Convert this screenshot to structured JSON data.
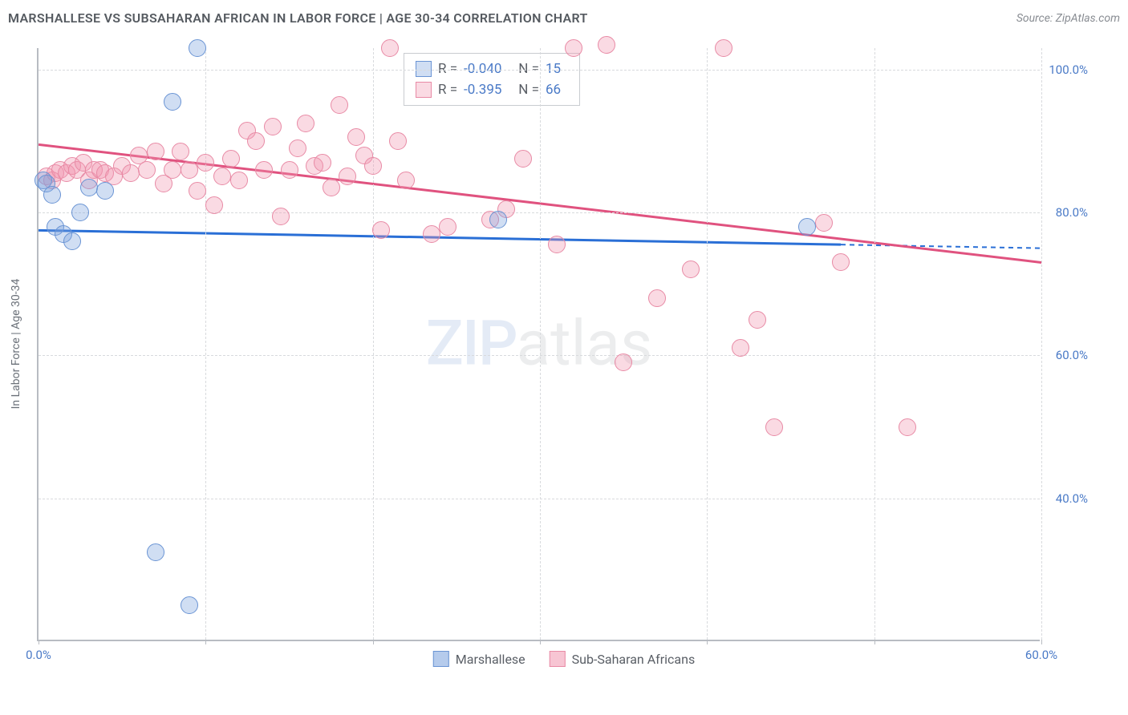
{
  "header": {
    "title": "MARSHALLESE VS SUBSAHARAN AFRICAN IN LABOR FORCE | AGE 30-34 CORRELATION CHART",
    "source": "Source: ZipAtlas.com"
  },
  "chart": {
    "type": "scatter",
    "y_label": "In Labor Force | Age 30-34",
    "xlim": [
      0,
      60
    ],
    "ylim": [
      20,
      103
    ],
    "x_ticks": [
      0,
      10,
      20,
      30,
      40,
      50,
      60
    ],
    "x_tick_labels": {
      "0": "0.0%",
      "60": "60.0%"
    },
    "y_ticks": [
      40,
      60,
      80,
      100
    ],
    "y_tick_labels": {
      "40": "40.0%",
      "60": "60.0%",
      "80": "80.0%",
      "100": "100.0%"
    },
    "grid_color": "#d8dadd",
    "axis_color": "#b8bcc2",
    "background_color": "#ffffff",
    "tick_label_color": "#4a7ac7",
    "axis_label_color": "#6a7078",
    "series": [
      {
        "name": "Marshallese",
        "color_fill": "rgba(120,160,220,0.35)",
        "color_stroke": "#6a94d4",
        "trend_color": "#2a6fd6",
        "marker_radius": 11,
        "r": "-0.040",
        "n": "15",
        "trend": {
          "x1_pct": 0,
          "y1": 77.5,
          "x2_pct": 80,
          "y2": 75.5,
          "dash_x2_pct": 100,
          "dash_y2": 75.0
        },
        "points": [
          [
            0.3,
            84.5
          ],
          [
            0.5,
            84.0
          ],
          [
            0.8,
            82.5
          ],
          [
            1.0,
            78.0
          ],
          [
            1.5,
            77.0
          ],
          [
            2.0,
            76.0
          ],
          [
            2.5,
            80.0
          ],
          [
            3.0,
            83.5
          ],
          [
            4.0,
            83.0
          ],
          [
            8.0,
            95.5
          ],
          [
            9.5,
            103.0
          ],
          [
            7.0,
            32.5
          ],
          [
            9.0,
            25.0
          ],
          [
            27.5,
            79.0
          ],
          [
            46.0,
            78.0
          ]
        ]
      },
      {
        "name": "Sub-Saharan Africans",
        "color_fill": "rgba(240,150,175,0.35)",
        "color_stroke": "#e88aa5",
        "trend_color": "#e0527f",
        "marker_radius": 11,
        "r": "-0.395",
        "n": "66",
        "trend": {
          "x1_pct": 0,
          "y1": 89.5,
          "x2_pct": 100,
          "y2": 73.0
        },
        "points": [
          [
            0.5,
            85.0
          ],
          [
            0.8,
            84.5
          ],
          [
            1.0,
            85.5
          ],
          [
            1.3,
            86.0
          ],
          [
            1.7,
            85.5
          ],
          [
            2.0,
            86.5
          ],
          [
            2.3,
            86.0
          ],
          [
            2.7,
            87.0
          ],
          [
            3.0,
            84.5
          ],
          [
            3.3,
            86.0
          ],
          [
            3.7,
            86.0
          ],
          [
            4.0,
            85.5
          ],
          [
            4.5,
            85.0
          ],
          [
            5.0,
            86.5
          ],
          [
            5.5,
            85.5
          ],
          [
            6.0,
            88.0
          ],
          [
            6.5,
            86.0
          ],
          [
            7.0,
            88.5
          ],
          [
            7.5,
            84.0
          ],
          [
            8.0,
            86.0
          ],
          [
            8.5,
            88.5
          ],
          [
            9.0,
            86.0
          ],
          [
            9.5,
            83.0
          ],
          [
            10.0,
            87.0
          ],
          [
            10.5,
            81.0
          ],
          [
            11.0,
            85.0
          ],
          [
            11.5,
            87.5
          ],
          [
            12.0,
            84.5
          ],
          [
            12.5,
            91.5
          ],
          [
            13.0,
            90.0
          ],
          [
            13.5,
            86.0
          ],
          [
            14.0,
            92.0
          ],
          [
            14.5,
            79.5
          ],
          [
            15.0,
            86.0
          ],
          [
            15.5,
            89.0
          ],
          [
            16.0,
            92.5
          ],
          [
            16.5,
            86.5
          ],
          [
            17.0,
            87.0
          ],
          [
            17.5,
            83.5
          ],
          [
            18.0,
            95.0
          ],
          [
            18.5,
            85.0
          ],
          [
            19.0,
            90.5
          ],
          [
            19.5,
            88.0
          ],
          [
            20.0,
            86.5
          ],
          [
            20.5,
            77.5
          ],
          [
            21.0,
            103.0
          ],
          [
            21.5,
            90.0
          ],
          [
            22.0,
            84.5
          ],
          [
            23.5,
            77.0
          ],
          [
            24.5,
            78.0
          ],
          [
            27.0,
            79.0
          ],
          [
            28.0,
            80.5
          ],
          [
            29.0,
            87.5
          ],
          [
            31.0,
            75.5
          ],
          [
            32.0,
            103.0
          ],
          [
            34.0,
            103.5
          ],
          [
            35.0,
            59.0
          ],
          [
            37.0,
            68.0
          ],
          [
            39.0,
            72.0
          ],
          [
            41.0,
            103.0
          ],
          [
            42.0,
            61.0
          ],
          [
            43.0,
            65.0
          ],
          [
            44.0,
            50.0
          ],
          [
            47.0,
            78.5
          ],
          [
            48.0,
            73.0
          ],
          [
            52.0,
            50.0
          ]
        ]
      }
    ],
    "legend_bottom": [
      {
        "label": "Marshallese",
        "fill": "rgba(120,160,220,0.55)",
        "stroke": "#6a94d4"
      },
      {
        "label": "Sub-Saharan Africans",
        "fill": "rgba(240,150,175,0.55)",
        "stroke": "#e88aa5"
      }
    ],
    "watermark": {
      "zip": "ZIP",
      "atlas": "atlas"
    }
  }
}
